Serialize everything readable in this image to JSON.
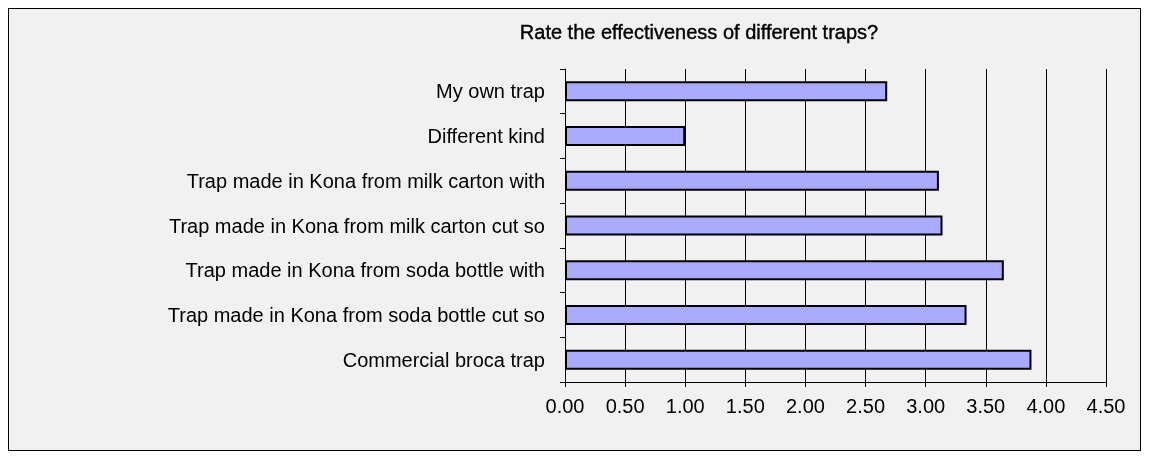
{
  "chart_data": {
    "type": "bar",
    "orientation": "horizontal",
    "title": "Rate the effectiveness of different traps?",
    "categories": [
      "My own trap",
      "Different kind",
      "Trap made in Kona from milk carton with",
      "Trap made in Kona from milk carton cut so",
      "Trap made in Kona from soda bottle with",
      "Trap made in Kona from soda bottle cut so",
      "Commercial broca trap"
    ],
    "values": [
      2.68,
      1.0,
      3.11,
      3.14,
      3.65,
      3.34,
      3.88
    ],
    "color": "#aaaaff",
    "xlim": [
      0,
      4.5
    ],
    "xticks": [
      {
        "value": 0,
        "label": "0.00"
      },
      {
        "value": 0.5,
        "label": "0.50"
      },
      {
        "value": 1,
        "label": "1.00"
      },
      {
        "value": 1.5,
        "label": "1.50"
      },
      {
        "value": 2,
        "label": "2.00"
      },
      {
        "value": 2.5,
        "label": "2.50"
      },
      {
        "value": 3,
        "label": "3.00"
      },
      {
        "value": 3.5,
        "label": "3.50"
      },
      {
        "value": 4,
        "label": "4.00"
      },
      {
        "value": 4.5,
        "label": "4.50"
      }
    ],
    "grid": "x"
  }
}
